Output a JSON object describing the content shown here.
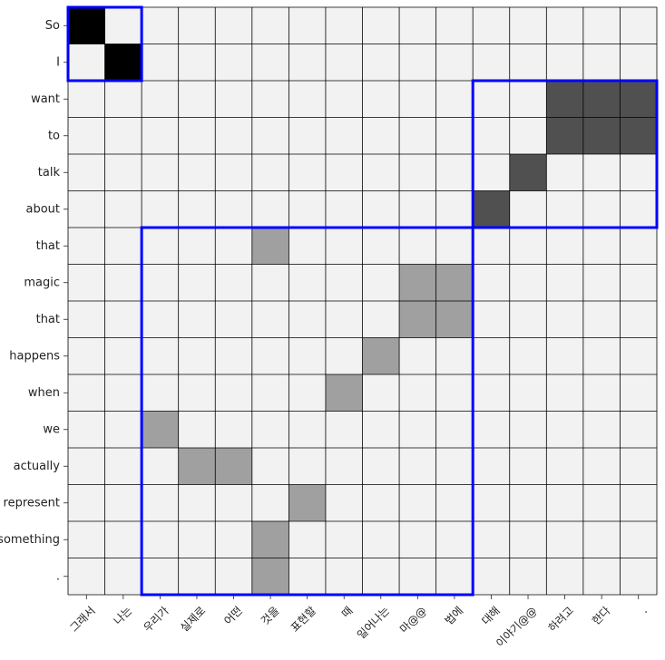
{
  "chart_data": {
    "type": "heatmap",
    "title": "",
    "xlabel": "",
    "ylabel": "",
    "x_labels": [
      "그래서",
      "나는",
      "우리가",
      "실제로",
      "어떤",
      "것을",
      "표현할",
      "때",
      "일어나는",
      "마@@",
      "법에",
      "대해",
      "이야기@@",
      "하려고",
      "한다",
      "."
    ],
    "y_labels": [
      "So",
      "I",
      "want",
      "to",
      "talk",
      "about",
      "that",
      "magic",
      "that",
      "happens",
      "when",
      "we",
      "actually",
      "represent",
      "something",
      "."
    ],
    "colors": {
      "background": "#f2f2f2",
      "grid": "#000000",
      "level_1": "#000000",
      "level_2": "#505050",
      "level_3": "#a0a0a0",
      "box": "#0000ff"
    },
    "cells": [
      {
        "row": 0,
        "col": 0,
        "level": 1
      },
      {
        "row": 1,
        "col": 1,
        "level": 1
      },
      {
        "row": 2,
        "col": 13,
        "level": 2
      },
      {
        "row": 2,
        "col": 14,
        "level": 2
      },
      {
        "row": 2,
        "col": 15,
        "level": 2
      },
      {
        "row": 3,
        "col": 13,
        "level": 2
      },
      {
        "row": 3,
        "col": 14,
        "level": 2
      },
      {
        "row": 3,
        "col": 15,
        "level": 2
      },
      {
        "row": 4,
        "col": 12,
        "level": 2
      },
      {
        "row": 5,
        "col": 11,
        "level": 2
      },
      {
        "row": 6,
        "col": 5,
        "level": 3
      },
      {
        "row": 7,
        "col": 9,
        "level": 3
      },
      {
        "row": 7,
        "col": 10,
        "level": 3
      },
      {
        "row": 8,
        "col": 9,
        "level": 3
      },
      {
        "row": 8,
        "col": 10,
        "level": 3
      },
      {
        "row": 9,
        "col": 8,
        "level": 3
      },
      {
        "row": 10,
        "col": 7,
        "level": 3
      },
      {
        "row": 11,
        "col": 2,
        "level": 3
      },
      {
        "row": 12,
        "col": 3,
        "level": 3
      },
      {
        "row": 12,
        "col": 4,
        "level": 3
      },
      {
        "row": 13,
        "col": 6,
        "level": 3
      },
      {
        "row": 14,
        "col": 5,
        "level": 3
      },
      {
        "row": 15,
        "col": 5,
        "level": 3
      }
    ],
    "boxes": [
      {
        "row_start": 0,
        "row_end": 1,
        "col_start": 0,
        "col_end": 1
      },
      {
        "row_start": 2,
        "row_end": 5,
        "col_start": 11,
        "col_end": 15
      },
      {
        "row_start": 6,
        "row_end": 15,
        "col_start": 2,
        "col_end": 10
      }
    ],
    "grid": true
  }
}
